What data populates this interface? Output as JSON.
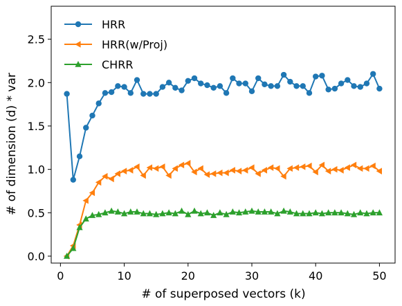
{
  "chart_data": {
    "type": "line",
    "title": "",
    "xlabel": "# of superposed vectors (k)",
    "ylabel": "# of dimension (d) * var",
    "xlim": [
      -1.45,
      52.45
    ],
    "ylim": [
      -0.08,
      2.88
    ],
    "xticks": [
      0,
      10,
      20,
      30,
      40,
      50
    ],
    "xtick_labels": [
      "0",
      "10",
      "20",
      "30",
      "40",
      "50"
    ],
    "yticks": [
      0.0,
      0.5,
      1.0,
      1.5,
      2.0,
      2.5
    ],
    "ytick_labels": [
      "0.0",
      "0.5",
      "1.0",
      "1.5",
      "2.0",
      "2.5"
    ],
    "grid": false,
    "legend_position": "top-left",
    "x": [
      1,
      2,
      3,
      4,
      5,
      6,
      7,
      8,
      9,
      10,
      11,
      12,
      13,
      14,
      15,
      16,
      17,
      18,
      19,
      20,
      21,
      22,
      23,
      24,
      25,
      26,
      27,
      28,
      29,
      30,
      31,
      32,
      33,
      34,
      35,
      36,
      37,
      38,
      39,
      40,
      41,
      42,
      43,
      44,
      45,
      46,
      47,
      48,
      49,
      50
    ],
    "series": [
      {
        "name": "HRR",
        "color": "#1f77b4",
        "marker": "circle",
        "values": [
          1.87,
          0.88,
          1.15,
          1.48,
          1.62,
          1.76,
          1.88,
          1.89,
          1.96,
          1.95,
          1.88,
          2.03,
          1.87,
          1.87,
          1.87,
          1.95,
          2.0,
          1.94,
          1.91,
          2.02,
          2.05,
          1.99,
          1.97,
          1.94,
          1.96,
          1.88,
          2.05,
          1.99,
          1.99,
          1.9,
          2.05,
          1.98,
          1.96,
          1.96,
          2.09,
          2.01,
          1.96,
          1.96,
          1.88,
          2.07,
          2.08,
          1.92,
          1.93,
          1.99,
          2.03,
          1.96,
          1.95,
          1.99,
          2.1,
          1.93
        ]
      },
      {
        "name": "HRR(w/Proj)",
        "color": "#ff7f0e",
        "marker": "triangle-left",
        "values": [
          0.0,
          0.12,
          0.36,
          0.64,
          0.73,
          0.85,
          0.92,
          0.89,
          0.95,
          0.98,
          0.99,
          1.03,
          0.93,
          1.02,
          1.01,
          1.03,
          0.93,
          1.01,
          1.05,
          1.07,
          0.97,
          1.01,
          0.94,
          0.95,
          0.96,
          0.96,
          0.99,
          0.98,
          0.99,
          1.02,
          0.95,
          0.99,
          1.02,
          1.01,
          0.92,
          1.01,
          1.02,
          1.03,
          1.04,
          0.97,
          1.05,
          0.98,
          1.0,
          0.99,
          1.02,
          1.05,
          1.01,
          1.01,
          1.04,
          0.98
        ]
      },
      {
        "name": "CHRR",
        "color": "#2ca02c",
        "marker": "triangle-up",
        "values": [
          0.0,
          0.09,
          0.33,
          0.43,
          0.47,
          0.48,
          0.5,
          0.52,
          0.51,
          0.49,
          0.51,
          0.51,
          0.49,
          0.49,
          0.48,
          0.49,
          0.5,
          0.49,
          0.52,
          0.48,
          0.52,
          0.49,
          0.5,
          0.47,
          0.5,
          0.48,
          0.51,
          0.5,
          0.51,
          0.52,
          0.51,
          0.51,
          0.51,
          0.49,
          0.52,
          0.51,
          0.49,
          0.49,
          0.49,
          0.5,
          0.49,
          0.5,
          0.5,
          0.5,
          0.49,
          0.48,
          0.5,
          0.49,
          0.5,
          0.5
        ]
      }
    ]
  }
}
